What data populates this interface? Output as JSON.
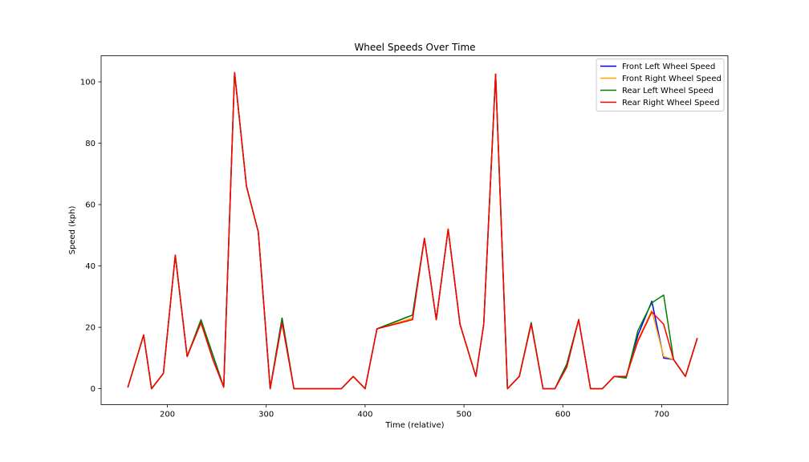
{
  "chart_data": {
    "type": "line",
    "title": "Wheel Speeds Over Time",
    "xlabel": "Time (relative)",
    "ylabel": "Speed (kph)",
    "xlim": [
      133,
      767
    ],
    "ylim": [
      -5.2,
      108.5
    ],
    "xticks": [
      200,
      300,
      400,
      500,
      600,
      700
    ],
    "yticks": [
      0,
      20,
      40,
      60,
      80,
      100
    ],
    "grid": false,
    "legend_position": "top-right",
    "x": [
      160,
      176,
      184,
      196,
      208,
      220,
      234,
      246,
      257,
      268,
      280,
      292,
      304,
      316,
      328,
      340,
      352,
      364,
      376,
      388,
      400,
      412,
      448,
      460,
      472,
      484,
      496,
      512,
      520,
      532,
      544,
      556,
      568,
      580,
      592,
      604,
      616,
      628,
      640,
      652,
      664,
      676,
      690,
      702,
      712,
      724,
      736
    ],
    "series": [
      {
        "name": "Front Left Wheel Speed",
        "color": "#0000ff",
        "values": [
          0.4,
          17.5,
          0,
          5,
          43.5,
          10.5,
          22,
          11,
          0.5,
          103,
          66,
          51,
          0,
          23,
          0,
          0,
          0,
          0,
          0,
          4,
          0,
          19.5,
          24,
          49,
          22.5,
          52,
          21,
          4,
          21,
          102.5,
          0,
          4,
          21.5,
          0,
          0,
          8,
          22.5,
          0,
          0,
          4,
          3.5,
          17.5,
          28.5,
          10,
          9.5,
          4,
          16.5
        ]
      },
      {
        "name": "Front Right Wheel Speed",
        "color": "#ffa500",
        "values": [
          0.4,
          17.5,
          0,
          5,
          43.5,
          10.5,
          21.5,
          9.5,
          0.5,
          103,
          66,
          51,
          0,
          21.5,
          0,
          0,
          0,
          0,
          0,
          4,
          0,
          19.5,
          23,
          49,
          22.5,
          52,
          21,
          4,
          21,
          102.5,
          0,
          4,
          21.5,
          0,
          0,
          7,
          22.5,
          0,
          0,
          4,
          3.5,
          16,
          25.5,
          10.5,
          9.5,
          4,
          16.5
        ]
      },
      {
        "name": "Rear Left Wheel Speed",
        "color": "#008000",
        "values": [
          0.4,
          17.5,
          0,
          5,
          43.5,
          10.5,
          22.5,
          11,
          0.5,
          103,
          66,
          51,
          0,
          23,
          0,
          0,
          0,
          0,
          0,
          4,
          0,
          19.5,
          24,
          49,
          22.5,
          52,
          21,
          4,
          21,
          102.5,
          0,
          4,
          21.5,
          0,
          0,
          8,
          22.5,
          0,
          0,
          4,
          3.5,
          19,
          28,
          30.5,
          9.5,
          4,
          16.5
        ]
      },
      {
        "name": "Rear Right Wheel Speed",
        "color": "#ff0000",
        "values": [
          0.4,
          17.5,
          0,
          5,
          43.5,
          10.5,
          21.5,
          9.5,
          0.5,
          103,
          66,
          51,
          0,
          21.5,
          0,
          0,
          0,
          0,
          0,
          4,
          0,
          19.5,
          22.5,
          49,
          22.5,
          52,
          21,
          4,
          21,
          102.5,
          0,
          4,
          21,
          0,
          0,
          7,
          22.5,
          0,
          0,
          4,
          4,
          15.5,
          25,
          21,
          9.5,
          4,
          16.5
        ]
      }
    ]
  }
}
